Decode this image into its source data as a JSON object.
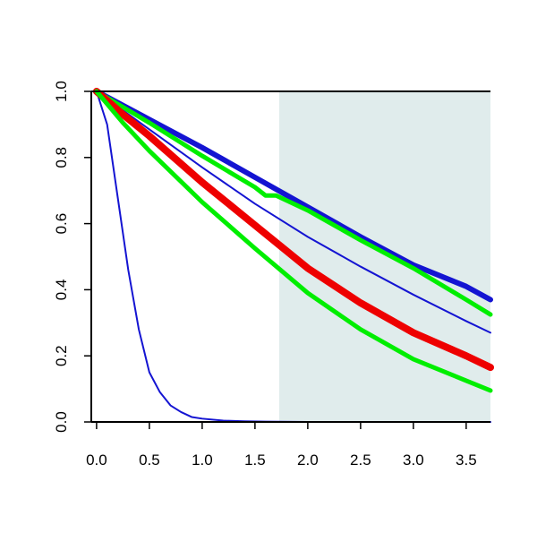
{
  "chart_data": {
    "type": "line",
    "title": "",
    "xlabel": "",
    "ylabel": "",
    "xlim": [
      -0.05,
      3.73
    ],
    "ylim": [
      0.0,
      1.0
    ],
    "x_ticks": [
      0.0,
      0.5,
      1.0,
      1.5,
      2.0,
      2.5,
      3.0,
      3.5
    ],
    "x_tick_labels": [
      "0.0",
      "0.5",
      "1.0",
      "1.5",
      "2.0",
      "2.5",
      "3.0",
      "3.5"
    ],
    "y_ticks": [
      0.0,
      0.2,
      0.4,
      0.6,
      0.8,
      1.0
    ],
    "y_tick_labels": [
      "0.0",
      "0.2",
      "0.4",
      "0.6",
      "0.8",
      "1.0"
    ],
    "grid": false,
    "legend": "none",
    "shaded_region": {
      "x_start": 1.73,
      "x_end": 3.73,
      "color": "#e0ecec"
    },
    "series": [
      {
        "color": "#1414d2",
        "weight": "thin",
        "x": [
          0.0,
          0.1,
          0.2,
          0.3,
          0.4,
          0.5,
          0.6,
          0.7,
          0.8,
          0.9,
          1.0,
          1.2,
          1.4,
          1.6,
          2.0,
          2.5,
          3.0,
          3.5,
          3.73
        ],
        "y": [
          1.0,
          0.9,
          0.68,
          0.46,
          0.28,
          0.15,
          0.09,
          0.05,
          0.03,
          0.015,
          0.01,
          0.004,
          0.002,
          0.001,
          0.0,
          0.0,
          0.0,
          0.0,
          0.0
        ]
      },
      {
        "color": "#1414d2",
        "weight": "thick",
        "x": [
          0.0,
          0.5,
          1.0,
          1.5,
          2.0,
          2.5,
          3.0,
          3.5,
          3.73
        ],
        "y": [
          1.0,
          0.915,
          0.83,
          0.74,
          0.65,
          0.56,
          0.475,
          0.41,
          0.37
        ]
      },
      {
        "color": "#1414d2",
        "weight": "thin",
        "x": [
          0.0,
          0.5,
          1.0,
          1.5,
          2.0,
          2.5,
          3.0,
          3.5,
          3.73
        ],
        "y": [
          1.0,
          0.885,
          0.77,
          0.66,
          0.56,
          0.47,
          0.385,
          0.305,
          0.27
        ]
      },
      {
        "color": "#00ee00",
        "weight": "medium",
        "x": [
          0.0,
          0.5,
          1.0,
          1.5,
          1.6,
          1.7,
          2.0,
          2.5,
          3.0,
          3.5,
          3.73
        ],
        "y": [
          1.0,
          0.905,
          0.805,
          0.71,
          0.685,
          0.685,
          0.64,
          0.55,
          0.465,
          0.37,
          0.325
        ]
      },
      {
        "color": "#ee0000",
        "weight": "heavy",
        "x": [
          0.0,
          0.25,
          0.5,
          1.0,
          1.5,
          2.0,
          2.5,
          3.0,
          3.5,
          3.73
        ],
        "y": [
          1.0,
          0.93,
          0.865,
          0.725,
          0.595,
          0.465,
          0.36,
          0.27,
          0.2,
          0.165
        ]
      },
      {
        "color": "#00ee00",
        "weight": "medium",
        "x": [
          0.0,
          0.25,
          0.5,
          1.0,
          1.5,
          2.0,
          2.5,
          3.0,
          3.5,
          3.73
        ],
        "y": [
          1.0,
          0.905,
          0.82,
          0.665,
          0.525,
          0.39,
          0.28,
          0.19,
          0.125,
          0.095
        ]
      }
    ]
  }
}
